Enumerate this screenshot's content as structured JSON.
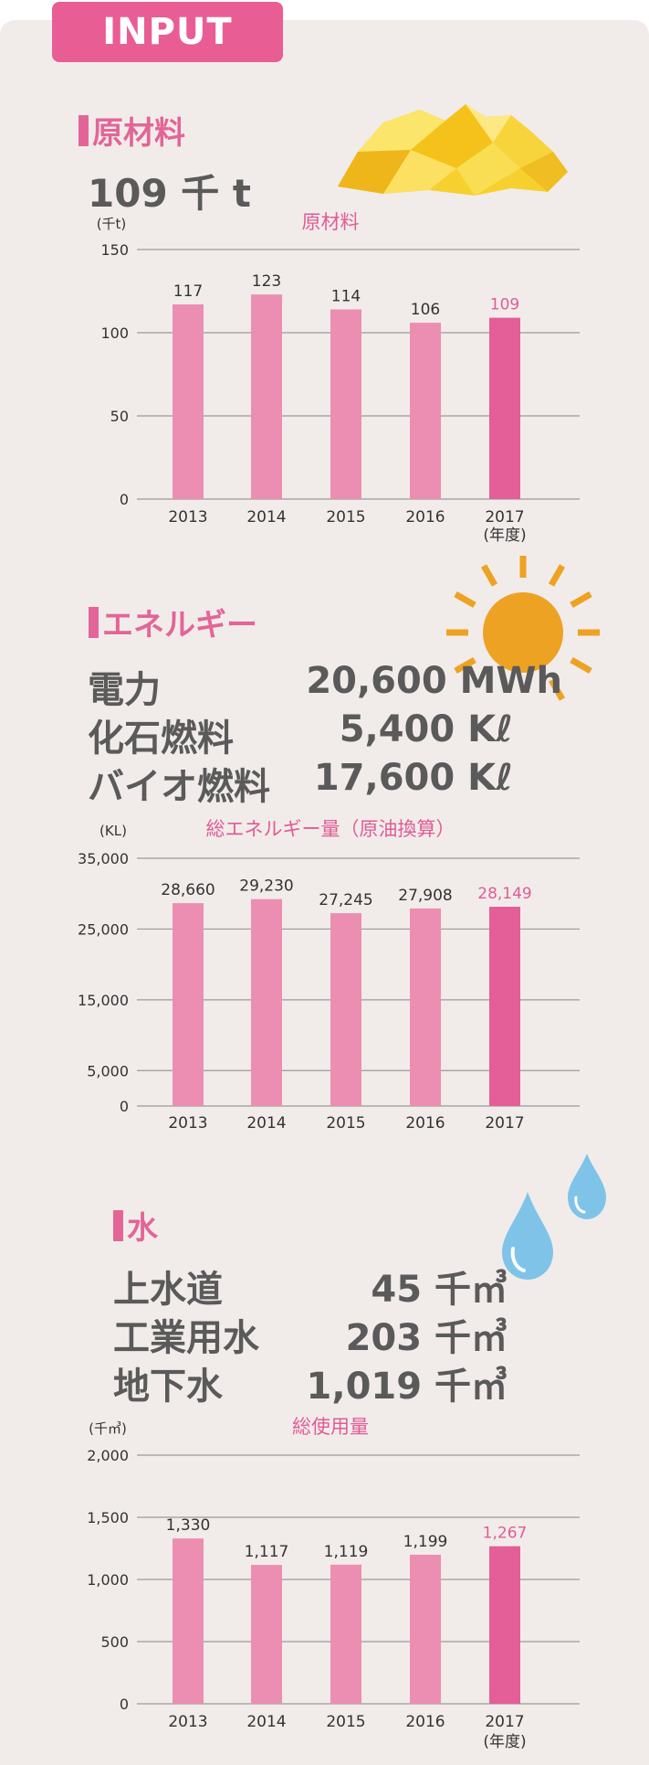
{
  "badge": "INPUT",
  "sections": {
    "raw": {
      "heading": "原材料",
      "stat": "109 千 t"
    },
    "energy": {
      "heading": "エネルギー",
      "rows": [
        {
          "label": "電力",
          "value": "20,600 MWh"
        },
        {
          "label": "化石燃料",
          "value": "5,400 Kℓ"
        },
        {
          "label": "バイオ燃料",
          "value": "17,600 Kℓ"
        }
      ]
    },
    "water": {
      "heading": "水",
      "rows": [
        {
          "label": "上水道",
          "value": "45 千㎥"
        },
        {
          "label": "工業用水",
          "value": "203 千㎥"
        },
        {
          "label": "地下水",
          "value": "1,019 千㎥"
        }
      ]
    }
  },
  "colors": {
    "bar": "#ec8eb2",
    "bar_highlight": "#e45e97",
    "highlight_label": "#e05c95",
    "grid": "#9a9a9a",
    "axis_text": "#333333"
  },
  "icons": [
    "yellow-crystal-icon",
    "sun-icon",
    "water-drop-icon"
  ],
  "chart_data": [
    {
      "type": "bar",
      "title": "原材料",
      "unit": "(千t)",
      "categories": [
        "2013",
        "2014",
        "2015",
        "2016",
        "2017"
      ],
      "values": [
        117,
        123,
        114,
        106,
        109
      ],
      "value_labels": [
        "117",
        "123",
        "114",
        "106",
        "109"
      ],
      "yticks": [
        0,
        50,
        100,
        150
      ],
      "ytick_labels": [
        "0",
        "50",
        "100",
        "150"
      ],
      "ylim": [
        0,
        150
      ],
      "last_category_note": "(年度)",
      "highlight_index": 4,
      "grid": true
    },
    {
      "type": "bar",
      "title": "総エネルギー量（原油換算）",
      "unit": "(KL)",
      "categories": [
        "2013",
        "2014",
        "2015",
        "2016",
        "2017"
      ],
      "values": [
        28660,
        29230,
        27245,
        27908,
        28149
      ],
      "value_labels": [
        "28,660",
        "29,230",
        "27,245",
        "27,908",
        "28,149"
      ],
      "yticks": [
        0,
        5000,
        15000,
        25000,
        35000
      ],
      "ytick_labels": [
        "0",
        "5,000",
        "15,000",
        "25,000",
        "35,000"
      ],
      "ylim": [
        0,
        35000
      ],
      "highlight_index": 4,
      "grid": true
    },
    {
      "type": "bar",
      "title": "総使用量",
      "unit": "(千㎥)",
      "categories": [
        "2013",
        "2014",
        "2015",
        "2016",
        "2017"
      ],
      "values": [
        1330,
        1117,
        1119,
        1199,
        1267
      ],
      "value_labels": [
        "1,330",
        "1,117",
        "1,119",
        "1,199",
        "1,267"
      ],
      "yticks": [
        0,
        500,
        1000,
        1500,
        2000
      ],
      "ytick_labels": [
        "0",
        "500",
        "1,000",
        "1,500",
        "2,000"
      ],
      "ylim": [
        0,
        2000
      ],
      "last_category_note": "(年度)",
      "highlight_index": 4,
      "grid": true
    }
  ]
}
